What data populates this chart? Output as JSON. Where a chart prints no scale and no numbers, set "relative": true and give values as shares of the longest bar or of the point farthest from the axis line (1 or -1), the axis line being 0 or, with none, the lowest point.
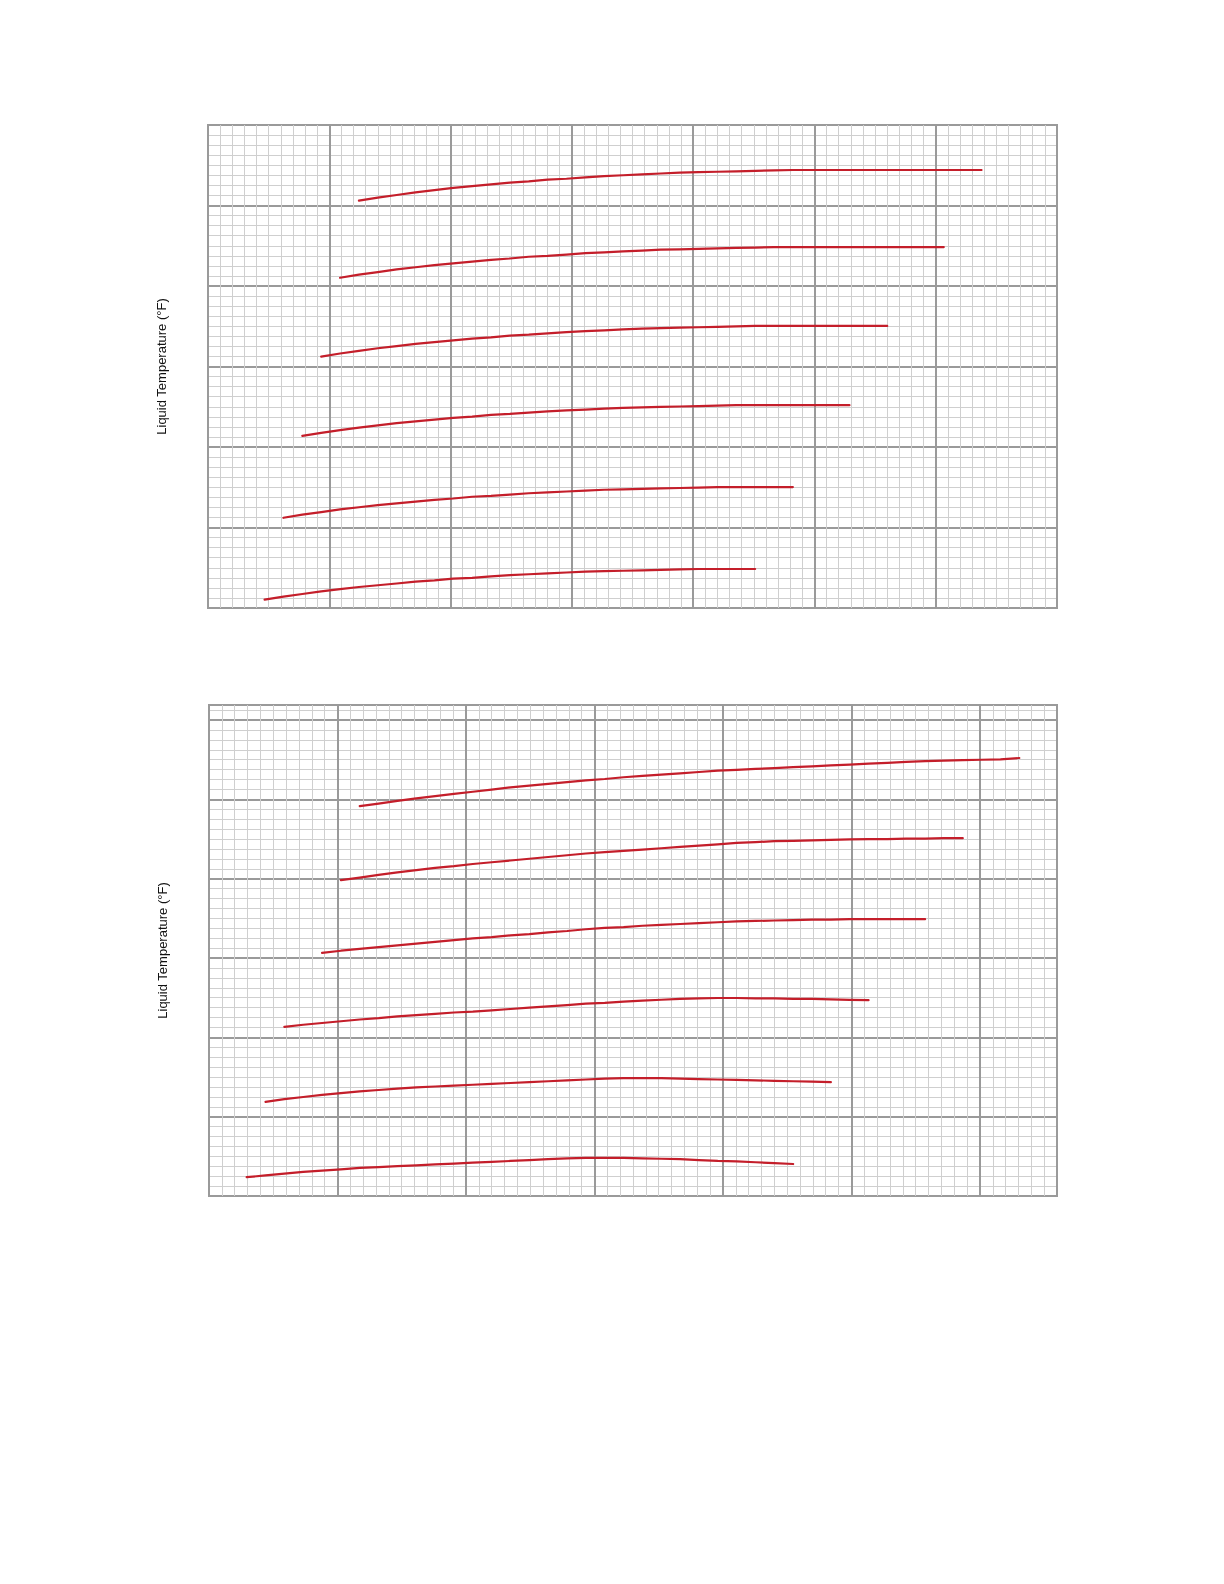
{
  "chart_data": [
    {
      "type": "line",
      "ylabel": "Liquid Temperature (°F)",
      "relative": true,
      "grid": true,
      "categories": [
        null,
        null,
        null,
        null,
        null,
        null,
        null,
        null,
        null,
        null,
        null,
        null,
        null,
        null,
        null,
        null,
        null,
        null,
        null,
        null,
        null,
        null,
        null,
        null,
        null,
        null,
        null,
        null,
        null,
        null,
        null,
        null,
        null,
        null,
        null,
        null,
        null,
        null,
        null,
        null,
        null,
        null,
        null,
        null,
        null,
        null
      ],
      "series": [
        {
          "color": "#c41e2a",
          "values": [
            null,
            null,
            null,
            null,
            null,
            null,
            null,
            null,
            0.93,
            0.937,
            0.943,
            0.949,
            0.954,
            0.959,
            0.963,
            0.967,
            0.971,
            0.974,
            0.978,
            0.98,
            0.983,
            0.986,
            0.988,
            0.99,
            0.992,
            0.994,
            0.995,
            0.996,
            0.997,
            0.998,
            0.999,
            1.0,
            1.0,
            1.0,
            1.0,
            1.0,
            1.0,
            1.0,
            1.0,
            1.0,
            1.0,
            1.0,
            null,
            null,
            null,
            null
          ]
        },
        {
          "color": "#c41e2a",
          "values": [
            null,
            null,
            null,
            null,
            null,
            null,
            null,
            0.754,
            0.761,
            0.767,
            0.773,
            0.778,
            0.783,
            0.787,
            0.791,
            0.795,
            0.798,
            0.802,
            0.804,
            0.807,
            0.81,
            0.812,
            0.814,
            0.816,
            0.818,
            0.819,
            0.82,
            0.821,
            0.822,
            0.823,
            0.824,
            0.824,
            0.824,
            0.824,
            0.824,
            0.824,
            0.824,
            0.824,
            0.824,
            0.824,
            null,
            null,
            null,
            null,
            null,
            null
          ]
        },
        {
          "color": "#c41e2a",
          "values": [
            null,
            null,
            null,
            null,
            null,
            null,
            0.574,
            0.581,
            0.587,
            0.593,
            0.598,
            0.603,
            0.607,
            0.611,
            0.615,
            0.618,
            0.622,
            0.624,
            0.627,
            0.63,
            0.632,
            0.634,
            0.636,
            0.638,
            0.639,
            0.64,
            0.641,
            0.642,
            0.643,
            0.644,
            0.644,
            0.644,
            0.644,
            0.644,
            0.644,
            0.644,
            0.644,
            null,
            null,
            null,
            null,
            null,
            null,
            null,
            null,
            null
          ]
        },
        {
          "color": "#c41e2a",
          "values": [
            null,
            null,
            null,
            null,
            null,
            0.393,
            0.4,
            0.406,
            0.412,
            0.417,
            0.422,
            0.426,
            0.43,
            0.434,
            0.437,
            0.441,
            0.443,
            0.446,
            0.449,
            0.451,
            0.453,
            0.455,
            0.457,
            0.458,
            0.459,
            0.46,
            0.461,
            0.462,
            0.463,
            0.463,
            0.463,
            0.463,
            0.463,
            0.463,
            0.463,
            null,
            null,
            null,
            null,
            null,
            null,
            null,
            null,
            null,
            null,
            null
          ]
        },
        {
          "color": "#c41e2a",
          "values": [
            null,
            null,
            null,
            null,
            0.206,
            0.213,
            0.219,
            0.225,
            0.23,
            0.235,
            0.239,
            0.243,
            0.247,
            0.25,
            0.254,
            0.256,
            0.259,
            0.262,
            0.264,
            0.266,
            0.268,
            0.27,
            0.271,
            0.272,
            0.273,
            0.274,
            0.275,
            0.276,
            0.276,
            0.276,
            0.276,
            0.276,
            null,
            null,
            null,
            null,
            null,
            null,
            null,
            null,
            null,
            null,
            null,
            null,
            null,
            null
          ]
        },
        {
          "color": "#c41e2a",
          "values": [
            null,
            null,
            null,
            0.019,
            0.026,
            0.032,
            0.038,
            0.043,
            0.048,
            0.052,
            0.056,
            0.06,
            0.063,
            0.067,
            0.069,
            0.072,
            0.075,
            0.077,
            0.079,
            0.081,
            0.083,
            0.084,
            0.085,
            0.086,
            0.087,
            0.088,
            0.089,
            0.089,
            0.089,
            0.089,
            null,
            null,
            null,
            null,
            null,
            null,
            null,
            null,
            null,
            null,
            null,
            null,
            null,
            null,
            null,
            null
          ]
        }
      ]
    },
    {
      "type": "line",
      "ylabel": "Liquid Temperature (°F)",
      "relative": true,
      "grid": true,
      "categories": [
        null,
        null,
        null,
        null,
        null,
        null,
        null,
        null,
        null,
        null,
        null,
        null,
        null,
        null,
        null,
        null,
        null,
        null,
        null,
        null,
        null,
        null,
        null,
        null,
        null,
        null,
        null,
        null,
        null,
        null,
        null,
        null,
        null,
        null,
        null,
        null,
        null,
        null,
        null,
        null,
        null,
        null,
        null,
        null,
        null,
        null
      ],
      "series": [
        {
          "color": "#c41e2a",
          "values": [
            null,
            null,
            null,
            null,
            null,
            null,
            null,
            null,
            0.89,
            0.896,
            0.902,
            0.908,
            0.913,
            0.918,
            0.923,
            0.928,
            0.933,
            0.937,
            0.941,
            0.945,
            0.949,
            0.952,
            0.956,
            0.959,
            0.962,
            0.965,
            0.968,
            0.971,
            0.973,
            0.975,
            0.977,
            0.979,
            0.981,
            0.983,
            0.985,
            0.987,
            0.989,
            0.991,
            0.993,
            0.994,
            0.995,
            0.996,
            0.997,
            1.0,
            null,
            null
          ]
        },
        {
          "color": "#c41e2a",
          "values": [
            null,
            null,
            null,
            null,
            null,
            null,
            null,
            0.721,
            0.727,
            0.733,
            0.739,
            0.744,
            0.749,
            0.753,
            0.758,
            0.762,
            0.766,
            0.77,
            0.774,
            0.778,
            0.782,
            0.785,
            0.788,
            0.791,
            0.794,
            0.797,
            0.8,
            0.803,
            0.806,
            0.808,
            0.81,
            0.811,
            0.812,
            0.813,
            0.814,
            0.815,
            0.815,
            0.816,
            0.816,
            0.817,
            0.817,
            null,
            null,
            null,
            null,
            null
          ]
        },
        {
          "color": "#c41e2a",
          "values": [
            null,
            null,
            null,
            null,
            null,
            null,
            0.555,
            0.56,
            0.564,
            0.568,
            0.572,
            0.576,
            0.58,
            0.584,
            0.588,
            0.591,
            0.595,
            0.598,
            0.602,
            0.605,
            0.609,
            0.612,
            0.614,
            0.617,
            0.619,
            0.621,
            0.623,
            0.625,
            0.627,
            0.628,
            0.629,
            0.63,
            0.631,
            0.631,
            0.632,
            0.632,
            0.632,
            0.632,
            0.632,
            null,
            null,
            null,
            null,
            null,
            null,
            null
          ]
        },
        {
          "color": "#c41e2a",
          "values": [
            null,
            null,
            null,
            null,
            0.386,
            0.391,
            0.395,
            0.399,
            0.403,
            0.406,
            0.41,
            0.413,
            0.416,
            0.419,
            0.421,
            0.424,
            0.427,
            0.43,
            0.433,
            0.436,
            0.439,
            0.441,
            0.444,
            0.446,
            0.448,
            0.45,
            0.451,
            0.452,
            0.452,
            0.451,
            0.451,
            0.45,
            0.45,
            0.449,
            0.448,
            0.447,
            null,
            null,
            null,
            null,
            null,
            null,
            null,
            null,
            null,
            null
          ]
        },
        {
          "color": "#c41e2a",
          "values": [
            null,
            null,
            null,
            0.215,
            0.221,
            0.226,
            0.231,
            0.235,
            0.239,
            0.242,
            0.245,
            0.248,
            0.25,
            0.252,
            0.254,
            0.256,
            0.258,
            0.26,
            0.262,
            0.264,
            0.266,
            0.268,
            0.269,
            0.269,
            0.269,
            0.268,
            0.267,
            0.266,
            0.265,
            0.264,
            0.263,
            0.262,
            0.261,
            0.26,
            null,
            null,
            null,
            null,
            null,
            null,
            null,
            null,
            null,
            null,
            null,
            null
          ]
        },
        {
          "color": "#c41e2a",
          "values": [
            null,
            null,
            0.043,
            0.047,
            0.051,
            0.055,
            0.058,
            0.061,
            0.064,
            0.066,
            0.068,
            0.07,
            0.072,
            0.074,
            0.076,
            0.078,
            0.08,
            0.082,
            0.084,
            0.086,
            0.087,
            0.087,
            0.087,
            0.086,
            0.085,
            0.084,
            0.082,
            0.08,
            0.079,
            0.077,
            0.075,
            0.073,
            null,
            null,
            null,
            null,
            null,
            null,
            null,
            null,
            null,
            null,
            null,
            null,
            null,
            null
          ]
        }
      ]
    }
  ]
}
